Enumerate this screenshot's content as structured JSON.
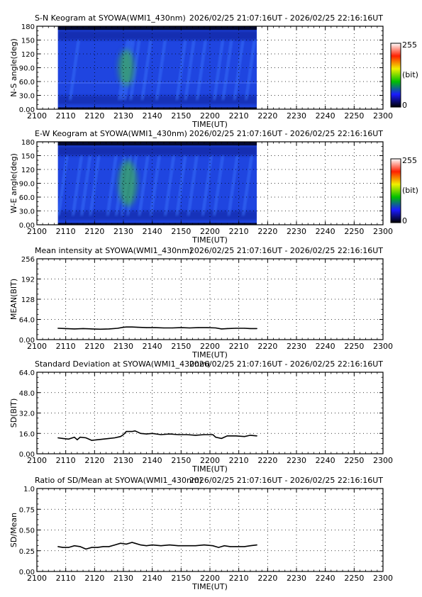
{
  "page": {
    "station": "SYOWA",
    "instrument": "WMI1_430nm",
    "time_range": "2026/02/25 21:07:16UT - 2026/02/25 22:16:16UT"
  },
  "colors": {
    "keogram_blue": "#1f45e0",
    "keogram_deep": "#0a1e8c",
    "keogram_green": "#3fbf3a",
    "keogram_dark_band": "#050a30",
    "line": "#000000",
    "axis": "#000000"
  },
  "colorbar": {
    "max_label": "255",
    "unit_label": "(bit)",
    "min_label": "0",
    "stops": [
      "#000000",
      "#1a1aff",
      "#00c000",
      "#f0f000",
      "#ff2000",
      "#ffffff"
    ]
  },
  "chart_data": [
    {
      "type": "heatmap",
      "title": "S-N Keogram at SYOWA(WMI1_430nm)",
      "time_range_label": "2026/02/25 21:07:16UT - 2026/02/25 22:16:16UT",
      "xlabel": "TIME(UT)",
      "ylabel": "N-S angle(deg)",
      "xticks": [
        "2100",
        "2110",
        "2120",
        "2130",
        "2140",
        "2150",
        "2200",
        "2210",
        "2220",
        "2230",
        "2240",
        "2250",
        "2300"
      ],
      "yticks": [
        "0.00",
        "30.0",
        "60.0",
        "90.0",
        "120",
        "150",
        "180"
      ],
      "ylim": [
        0,
        180
      ],
      "data_extent_minutes": [
        7.27,
        76.27
      ],
      "bright_streak_times": [
        13,
        30,
        31,
        32,
        34,
        38,
        43,
        50,
        53,
        57,
        63,
        66,
        70,
        74
      ],
      "green_patch": {
        "time_minutes": [
          29,
          33
        ],
        "angle_deg": [
          50,
          130
        ]
      },
      "horizontal_line_deg": 57
    },
    {
      "type": "heatmap",
      "title": "E-W Keogram at SYOWA(WMI1_430nm)",
      "time_range_label": "2026/02/25 21:07:16UT - 2026/02/25 22:16:16UT",
      "xlabel": "TIME(UT)",
      "ylabel": "W-E angle(deg)",
      "xticks": [
        "2100",
        "2110",
        "2120",
        "2130",
        "2140",
        "2150",
        "2200",
        "2210",
        "2220",
        "2230",
        "2240",
        "2250",
        "2300"
      ],
      "yticks": [
        "0.00",
        "30.0",
        "60.0",
        "90.0",
        "120",
        "150",
        "180"
      ],
      "ylim": [
        0,
        180
      ],
      "data_extent_minutes": [
        7.27,
        76.27
      ],
      "bright_streak_times": [
        9,
        14,
        17,
        20,
        26,
        29,
        31,
        33,
        37,
        41,
        46,
        50,
        54,
        59,
        63,
        68,
        73
      ],
      "green_patch": {
        "time_minutes": [
          29,
          34
        ],
        "angle_deg": [
          40,
          140
        ]
      }
    },
    {
      "type": "line",
      "title": "Mean intensity at SYOWA(WMI1_430nm)",
      "time_range_label": "2026/02/25 21:07:16UT - 2026/02/25 22:16:16UT",
      "xlabel": "TIME(UT)",
      "ylabel": "MEAN(BIT)",
      "xticks": [
        "2100",
        "2110",
        "2120",
        "2130",
        "2140",
        "2150",
        "2200",
        "2210",
        "2220",
        "2230",
        "2240",
        "2250",
        "2300"
      ],
      "yticks": [
        "0.00",
        "64.0",
        "128",
        "192",
        "256"
      ],
      "ylim": [
        0,
        256
      ],
      "x": [
        7.3,
        10,
        13,
        16,
        19,
        22,
        25,
        28,
        30,
        31,
        33,
        35,
        38,
        41,
        44,
        47,
        50,
        53,
        56,
        59,
        62,
        64,
        66,
        69,
        72,
        74,
        76.3
      ],
      "values": [
        36,
        35,
        34,
        35,
        34,
        33,
        34,
        36,
        39,
        40,
        40,
        39,
        38,
        38,
        37,
        37,
        38,
        37,
        38,
        38,
        37,
        34,
        35,
        36,
        36,
        35,
        35
      ]
    },
    {
      "type": "line",
      "title": "Standard Deviation at SYOWA(WMI1_430nm)",
      "time_range_label": "2026/02/25 21:07:16UT - 2026/02/25 22:16:16UT",
      "xlabel": "TIME(UT)",
      "ylabel": "SD(BIT)",
      "xticks": [
        "2100",
        "2110",
        "2120",
        "2130",
        "2140",
        "2150",
        "2200",
        "2210",
        "2220",
        "2230",
        "2240",
        "2250",
        "2300"
      ],
      "yticks": [
        "0.00",
        "16.0",
        "32.0",
        "48.0",
        "64.0"
      ],
      "ylim": [
        0,
        64
      ],
      "x": [
        7.3,
        9,
        11,
        13,
        14,
        15,
        17,
        19,
        21,
        23,
        25,
        27,
        29,
        30,
        31,
        33,
        34,
        36,
        38,
        40,
        43,
        46,
        49,
        52,
        55,
        58,
        61,
        62,
        64,
        66,
        69,
        72,
        74,
        76.3
      ],
      "values": [
        12.5,
        12,
        11.5,
        13,
        11,
        13,
        12.5,
        10.5,
        11,
        11.5,
        12,
        12.5,
        13.5,
        15,
        17.5,
        17.5,
        18,
        16,
        15.5,
        16,
        15,
        15.5,
        15,
        15,
        14.5,
        15,
        15,
        13,
        12,
        14,
        14,
        13.5,
        14.5,
        14
      ]
    },
    {
      "type": "line",
      "title": "Ratio of SD/Mean at SYOWA(WMI1_430nm)",
      "time_range_label": "2026/02/25 21:07:16UT - 2026/02/25 22:16:16UT",
      "xlabel": "TIME(UT)",
      "ylabel": "SD/Mean",
      "xticks": [
        "2100",
        "2110",
        "2120",
        "2130",
        "2140",
        "2150",
        "2200",
        "2210",
        "2220",
        "2230",
        "2240",
        "2250",
        "2300"
      ],
      "yticks": [
        "0.00",
        "0.25",
        "0.50",
        "0.75",
        "1.0"
      ],
      "ylim": [
        0,
        1
      ],
      "x": [
        7.3,
        9,
        11,
        13,
        15,
        17,
        19,
        21,
        23,
        25,
        27,
        29,
        31,
        33,
        34,
        36,
        38,
        40,
        43,
        46,
        49,
        52,
        55,
        58,
        61,
        63,
        65,
        67,
        69,
        72,
        74,
        76.3
      ],
      "values": [
        0.3,
        0.29,
        0.29,
        0.31,
        0.3,
        0.27,
        0.29,
        0.29,
        0.3,
        0.3,
        0.32,
        0.34,
        0.33,
        0.35,
        0.34,
        0.32,
        0.31,
        0.32,
        0.31,
        0.32,
        0.31,
        0.31,
        0.31,
        0.32,
        0.31,
        0.29,
        0.31,
        0.3,
        0.3,
        0.3,
        0.31,
        0.32
      ]
    }
  ]
}
